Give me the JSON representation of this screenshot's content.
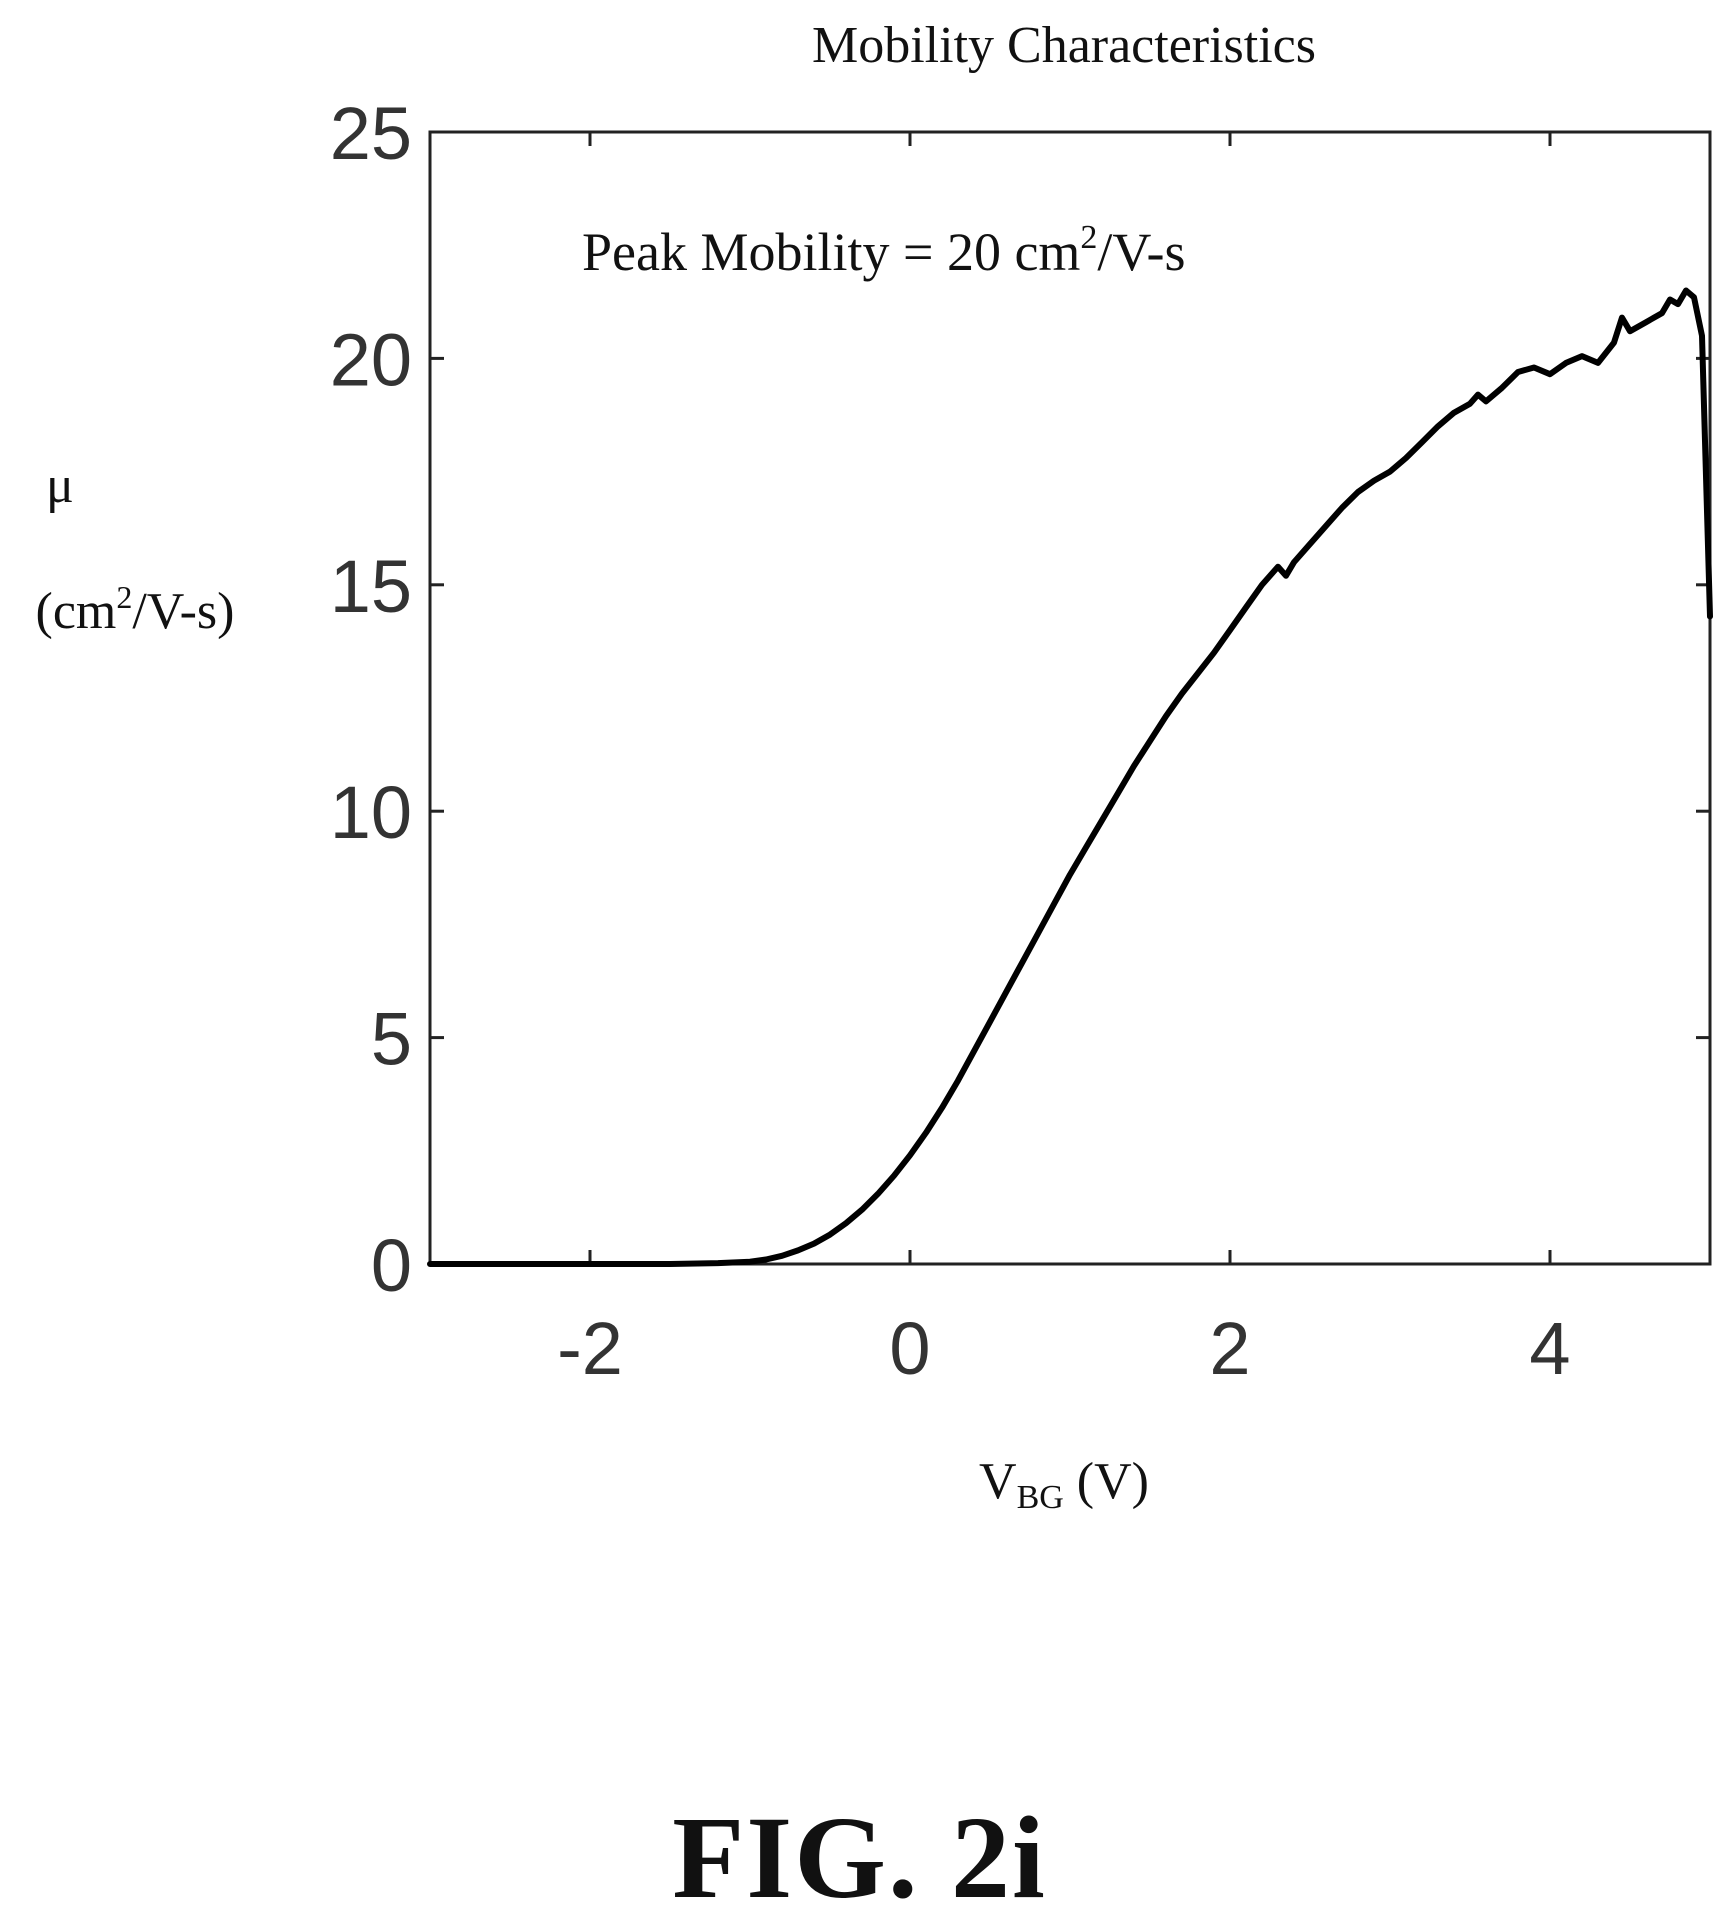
{
  "figure": {
    "caption": "FIG. 2i"
  },
  "chart_data": {
    "type": "line",
    "title": "Mobility Characteristics",
    "annotation": {
      "prefix": "Peak Mobility = 20 cm",
      "superscript": "2",
      "suffix": "/V-s"
    },
    "ylabel": {
      "symbol": "μ",
      "unit_prefix": "(cm",
      "unit_superscript": "2",
      "unit_suffix": "/V-s)"
    },
    "xlabel": {
      "main": "V",
      "subscript": "BG",
      "suffix": " (V)"
    },
    "xlim": [
      -3,
      5
    ],
    "ylim": [
      0,
      25
    ],
    "xticks": [
      -2,
      0,
      2,
      4
    ],
    "xtick_labels": [
      "-2",
      "0",
      "2",
      "4"
    ],
    "yticks": [
      0,
      5,
      10,
      15,
      20,
      25
    ],
    "ytick_labels": [
      "0",
      "5",
      "10",
      "15",
      "20",
      "25"
    ],
    "grid": false,
    "line_color": "#000000",
    "series": [
      {
        "x": [
          -3.0,
          -2.5,
          -2.0,
          -1.5,
          -1.2,
          -1.0,
          -0.9,
          -0.8,
          -0.7,
          -0.6,
          -0.5,
          -0.4,
          -0.3,
          -0.2,
          -0.1,
          0.0,
          0.1,
          0.2,
          0.3,
          0.4,
          0.5,
          0.6,
          0.7,
          0.8,
          0.9,
          1.0,
          1.1,
          1.2,
          1.3,
          1.4,
          1.5,
          1.6,
          1.7,
          1.8,
          1.9,
          2.0,
          2.1,
          2.2,
          2.3,
          2.35,
          2.4,
          2.5,
          2.6,
          2.7,
          2.8,
          2.9,
          3.0,
          3.1,
          3.2,
          3.3,
          3.4,
          3.5,
          3.55,
          3.6,
          3.7,
          3.8,
          3.9,
          4.0,
          4.1,
          4.2,
          4.3,
          4.4,
          4.45,
          4.5,
          4.6,
          4.7,
          4.75,
          4.8,
          4.85,
          4.9,
          4.95,
          5.0
        ],
        "y": [
          0.0,
          0.0,
          0.0,
          0.0,
          0.02,
          0.05,
          0.1,
          0.18,
          0.3,
          0.45,
          0.65,
          0.9,
          1.2,
          1.55,
          1.95,
          2.4,
          2.9,
          3.45,
          4.05,
          4.7,
          5.35,
          6.0,
          6.65,
          7.3,
          7.95,
          8.6,
          9.2,
          9.8,
          10.4,
          11.0,
          11.55,
          12.1,
          12.6,
          13.05,
          13.5,
          14.0,
          14.5,
          15.0,
          15.4,
          15.2,
          15.5,
          15.9,
          16.3,
          16.7,
          17.05,
          17.3,
          17.5,
          17.8,
          18.15,
          18.5,
          18.8,
          19.0,
          19.2,
          19.05,
          19.35,
          19.7,
          19.8,
          19.65,
          19.9,
          20.05,
          19.9,
          20.35,
          20.9,
          20.6,
          20.8,
          21.0,
          21.3,
          21.2,
          21.5,
          21.35,
          20.5,
          14.3
        ]
      }
    ]
  }
}
